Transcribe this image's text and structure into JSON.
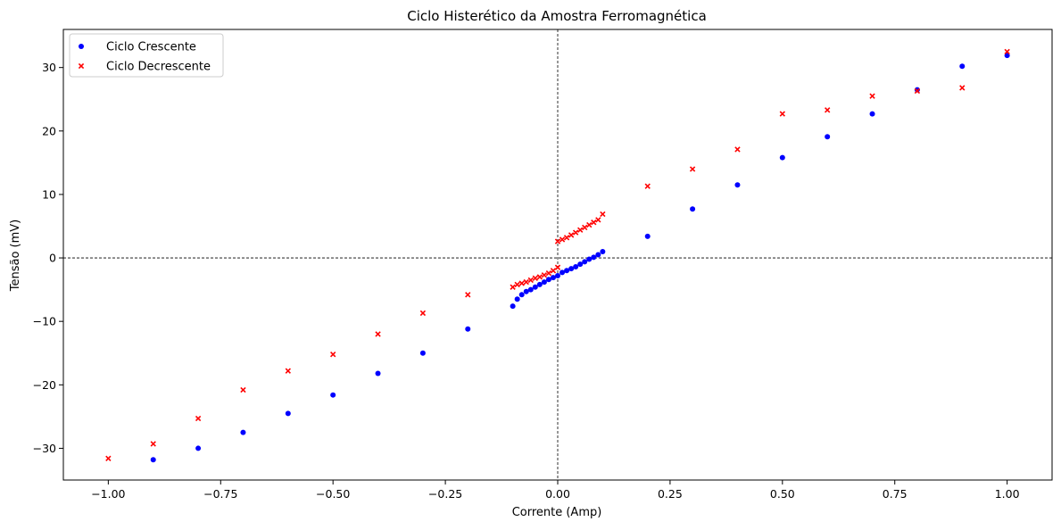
{
  "chart_data": {
    "type": "scatter",
    "title": "Ciclo Histerético da Amostra Ferromagnética",
    "xlabel": "Corrente (Amp)",
    "ylabel": "Tensão (mV)",
    "xlim": [
      -1.1,
      1.1
    ],
    "ylim": [
      -35,
      36
    ],
    "x_ticks": [
      -1.0,
      -0.75,
      -0.5,
      -0.25,
      0.0,
      0.25,
      0.5,
      0.75,
      1.0
    ],
    "x_tick_labels": [
      "−1.00",
      "−0.75",
      "−0.50",
      "−0.25",
      "0.00",
      "0.25",
      "0.50",
      "0.75",
      "1.00"
    ],
    "y_ticks": [
      -30,
      -20,
      -10,
      0,
      10,
      20,
      30
    ],
    "y_tick_labels": [
      "−30",
      "−20",
      "−10",
      "0",
      "10",
      "20",
      "30"
    ],
    "grid": false,
    "reference_lines": {
      "x": 0,
      "y": 0,
      "style": "dashed"
    },
    "legend_position": "top-left",
    "series": [
      {
        "name": "Ciclo Crescente",
        "marker": "circle",
        "color": "#0000ff",
        "points": [
          [
            -0.9,
            -31.8
          ],
          [
            -0.8,
            -30.0
          ],
          [
            -0.7,
            -27.5
          ],
          [
            -0.6,
            -24.5
          ],
          [
            -0.5,
            -21.6
          ],
          [
            -0.4,
            -18.2
          ],
          [
            -0.3,
            -15.0
          ],
          [
            -0.2,
            -11.2
          ],
          [
            -0.1,
            -7.6
          ],
          [
            -0.09,
            -6.5
          ],
          [
            -0.08,
            -5.8
          ],
          [
            -0.07,
            -5.3
          ],
          [
            -0.06,
            -5.0
          ],
          [
            -0.05,
            -4.6
          ],
          [
            -0.04,
            -4.2
          ],
          [
            -0.03,
            -3.8
          ],
          [
            -0.02,
            -3.4
          ],
          [
            -0.01,
            -3.1
          ],
          [
            0.0,
            -2.8
          ],
          [
            0.01,
            -2.3
          ],
          [
            0.02,
            -2.0
          ],
          [
            0.03,
            -1.7
          ],
          [
            0.04,
            -1.4
          ],
          [
            0.05,
            -1.0
          ],
          [
            0.06,
            -0.6
          ],
          [
            0.07,
            -0.2
          ],
          [
            0.08,
            0.1
          ],
          [
            0.09,
            0.5
          ],
          [
            0.1,
            1.0
          ],
          [
            0.2,
            3.4
          ],
          [
            0.3,
            7.7
          ],
          [
            0.4,
            11.5
          ],
          [
            0.5,
            15.8
          ],
          [
            0.6,
            19.1
          ],
          [
            0.7,
            22.7
          ],
          [
            0.8,
            26.5
          ],
          [
            0.9,
            30.2
          ],
          [
            1.0,
            31.9
          ]
        ]
      },
      {
        "name": "Ciclo Decrescente",
        "marker": "x",
        "color": "#ff0000",
        "points": [
          [
            -1.0,
            -31.6
          ],
          [
            -0.9,
            -29.3
          ],
          [
            -0.8,
            -25.3
          ],
          [
            -0.7,
            -20.8
          ],
          [
            -0.6,
            -17.8
          ],
          [
            -0.5,
            -15.2
          ],
          [
            -0.4,
            -12.0
          ],
          [
            -0.3,
            -8.7
          ],
          [
            -0.2,
            -5.8
          ],
          [
            -0.1,
            -4.6
          ],
          [
            -0.09,
            -4.2
          ],
          [
            -0.08,
            -4.0
          ],
          [
            -0.07,
            -3.8
          ],
          [
            -0.06,
            -3.5
          ],
          [
            -0.05,
            -3.2
          ],
          [
            -0.04,
            -3.0
          ],
          [
            -0.03,
            -2.7
          ],
          [
            -0.02,
            -2.4
          ],
          [
            -0.01,
            -2.0
          ],
          [
            0.0,
            -1.5
          ],
          [
            0.0,
            2.6
          ],
          [
            0.01,
            2.9
          ],
          [
            0.02,
            3.2
          ],
          [
            0.03,
            3.6
          ],
          [
            0.04,
            4.0
          ],
          [
            0.05,
            4.4
          ],
          [
            0.06,
            4.8
          ],
          [
            0.07,
            5.2
          ],
          [
            0.08,
            5.6
          ],
          [
            0.09,
            6.0
          ],
          [
            0.1,
            6.9
          ],
          [
            0.2,
            11.3
          ],
          [
            0.3,
            14.0
          ],
          [
            0.4,
            17.1
          ],
          [
            0.5,
            22.7
          ],
          [
            0.6,
            23.3
          ],
          [
            0.7,
            25.5
          ],
          [
            0.8,
            26.3
          ],
          [
            0.9,
            26.8
          ],
          [
            1.0,
            32.5
          ]
        ]
      }
    ]
  }
}
